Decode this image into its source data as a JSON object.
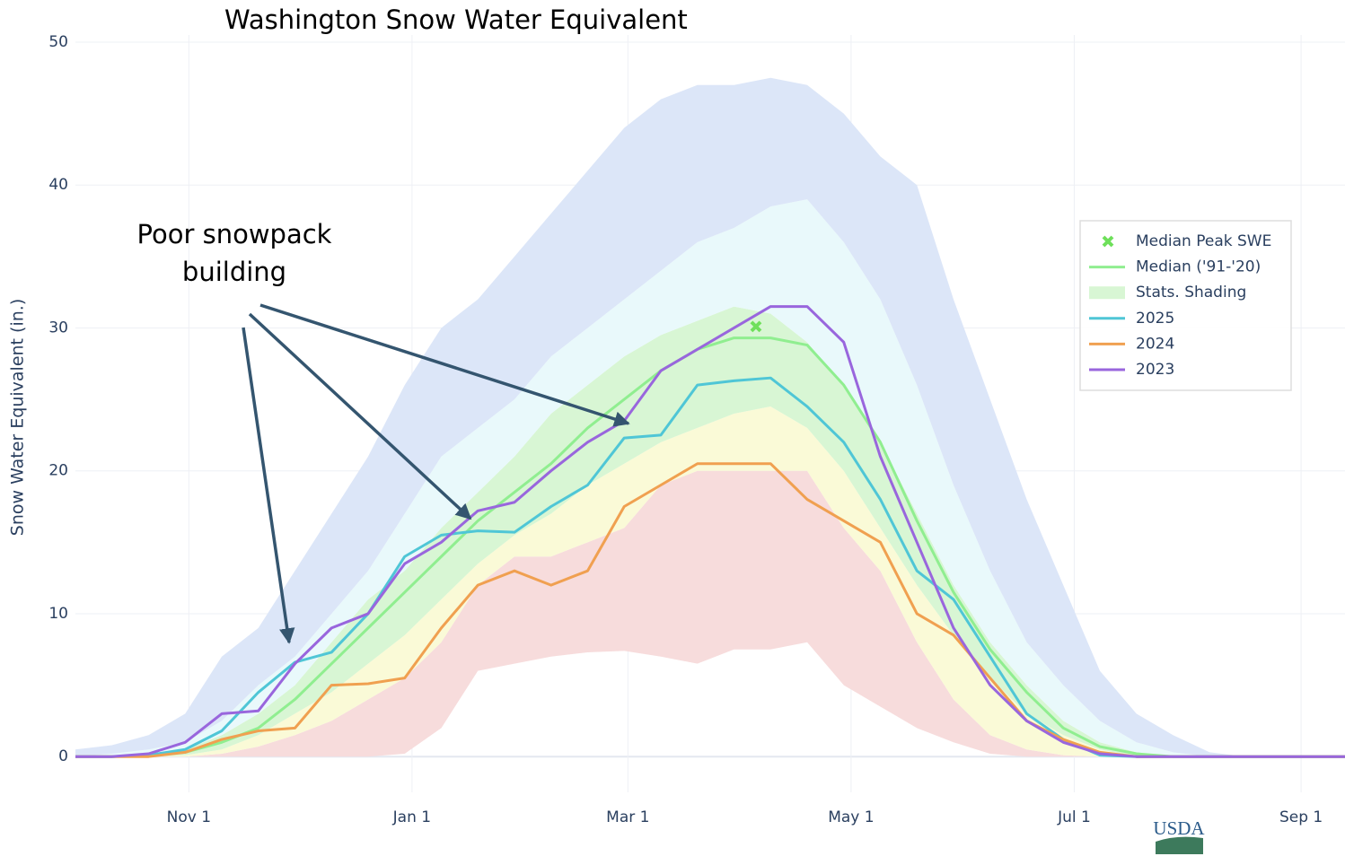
{
  "chart_data": {
    "type": "line",
    "title": "Washington Snow Water Equivalent",
    "y_label": "Snow Water Equivalent (in.)",
    "annotation": [
      "Poor snowpack",
      "building"
    ],
    "logo": "USDA",
    "x": [
      0,
      10,
      20,
      30,
      40,
      50,
      60,
      70,
      80,
      90,
      100,
      110,
      120,
      130,
      140,
      150,
      160,
      170,
      180,
      190,
      200,
      210,
      220,
      230,
      240,
      250,
      260,
      270,
      280,
      290,
      300,
      310,
      320,
      330,
      347
    ],
    "xlim": [
      0,
      347
    ],
    "xticks": [
      {
        "value": 31,
        "label": "Nov 1"
      },
      {
        "value": 92,
        "label": "Jan 1"
      },
      {
        "value": 151,
        "label": "Mar 1"
      },
      {
        "value": 212,
        "label": "May 1"
      },
      {
        "value": 273,
        "label": "Jul 1"
      },
      {
        "value": 335,
        "label": "Sep 1"
      }
    ],
    "ylim": [
      -2.5,
      50.5
    ],
    "yticks": [
      0,
      10,
      20,
      30,
      40,
      50
    ],
    "grid": true,
    "legend": "upper right",
    "stats_shading": {
      "name": "Stats. Shading",
      "color": "#d8f6d4",
      "colors": [
        "#f7dcdc",
        "#fafad7",
        "#d8f6d4",
        "#e9f9fb",
        "#dce6f8"
      ],
      "levels": [
        [
          0,
          0,
          0,
          0,
          0,
          0,
          0,
          0,
          0,
          0.2,
          2,
          6,
          6.5,
          7,
          7.3,
          7.4,
          7,
          6.5,
          7.5,
          7.5,
          8,
          5,
          3.5,
          2,
          1,
          0.2,
          0,
          0,
          0,
          0,
          0,
          0,
          0,
          0,
          0
        ],
        [
          0,
          0,
          0,
          0,
          0.2,
          0.7,
          1.5,
          2.5,
          4,
          5.5,
          8,
          12,
          14,
          14,
          15,
          16,
          19,
          20,
          20,
          20,
          20,
          16,
          13,
          8,
          4,
          1.5,
          0.5,
          0.1,
          0,
          0,
          0,
          0,
          0,
          0,
          0
        ],
        [
          0,
          0,
          0,
          0.1,
          0.5,
          1.5,
          3,
          4.5,
          6.5,
          8.5,
          11,
          13.5,
          15.5,
          17,
          19,
          20.5,
          22,
          23,
          24,
          24.5,
          23,
          20,
          16,
          12,
          8.5,
          5.5,
          3,
          1.5,
          0.5,
          0,
          0,
          0,
          0,
          0,
          0
        ],
        [
          0,
          0,
          0.2,
          0.5,
          1.5,
          3,
          5,
          8,
          11,
          13,
          16,
          18.5,
          21,
          24,
          26,
          28,
          29.5,
          30.5,
          31.5,
          31,
          29,
          26,
          22,
          17,
          12,
          8,
          5,
          2.5,
          1,
          0.3,
          0,
          0,
          0,
          0,
          0
        ],
        [
          0,
          0.2,
          0.5,
          1,
          2.5,
          5,
          7,
          10,
          13,
          17,
          21,
          23,
          25,
          28,
          30,
          32,
          34,
          36,
          37,
          38.5,
          39,
          36,
          32,
          26,
          19,
          13,
          8,
          5,
          2.5,
          1,
          0.3,
          0,
          0,
          0,
          0
        ],
        [
          0.5,
          0.8,
          1.5,
          3,
          7,
          9,
          13,
          17,
          21,
          26,
          30,
          32,
          35,
          38,
          41,
          44,
          46,
          47,
          47,
          47.5,
          47,
          45,
          42,
          40,
          32,
          25,
          18,
          12,
          6,
          3,
          1.5,
          0.3,
          0,
          0,
          0
        ]
      ]
    },
    "median_peak": {
      "name": "Median Peak SWE",
      "color": "#6ee05a",
      "x": 186,
      "y": 30.1
    },
    "series": [
      {
        "name": "Median ('91-'20)",
        "color": "#90ee90",
        "values": [
          0,
          0,
          0.1,
          0.3,
          1,
          2,
          4,
          6.5,
          9,
          11.5,
          14,
          16.5,
          18.5,
          20.5,
          23,
          25,
          27,
          28.5,
          29.3,
          29.3,
          28.8,
          26,
          22,
          16.5,
          11.5,
          7.5,
          4.5,
          2,
          0.7,
          0.2,
          0,
          0,
          0,
          0,
          0
        ]
      },
      {
        "name": "2025",
        "color": "#4fc6d6",
        "values": [
          0,
          0,
          0.1,
          0.5,
          1.8,
          4.5,
          6.6,
          7.3,
          10,
          14,
          15.5,
          15.8,
          15.7,
          17.5,
          19,
          22.3,
          22.5,
          26,
          26.3,
          26.5,
          24.5,
          22,
          18,
          13,
          11,
          7,
          3,
          1.2,
          0.1,
          0,
          0,
          0,
          0,
          0,
          0
        ]
      },
      {
        "name": "2024",
        "color": "#f0a050",
        "values": [
          0,
          0,
          0,
          0.3,
          1.2,
          1.8,
          2,
          5,
          5.1,
          5.5,
          9,
          12,
          13,
          12,
          13,
          17.5,
          19,
          20.5,
          20.5,
          20.5,
          18,
          16.5,
          15,
          10,
          8.5,
          5.5,
          2.5,
          1.2,
          0.3,
          0,
          0,
          0,
          0,
          0,
          0
        ]
      },
      {
        "name": "2023",
        "color": "#9966dd",
        "values": [
          0,
          0,
          0.2,
          1,
          3,
          3.2,
          6.5,
          9,
          10,
          13.5,
          15,
          17.2,
          17.8,
          20,
          22,
          23.5,
          27,
          28.5,
          30,
          31.5,
          31.5,
          29,
          21,
          15,
          9,
          5,
          2.5,
          1,
          0.2,
          0,
          0,
          0,
          0,
          0,
          0
        ]
      }
    ]
  }
}
